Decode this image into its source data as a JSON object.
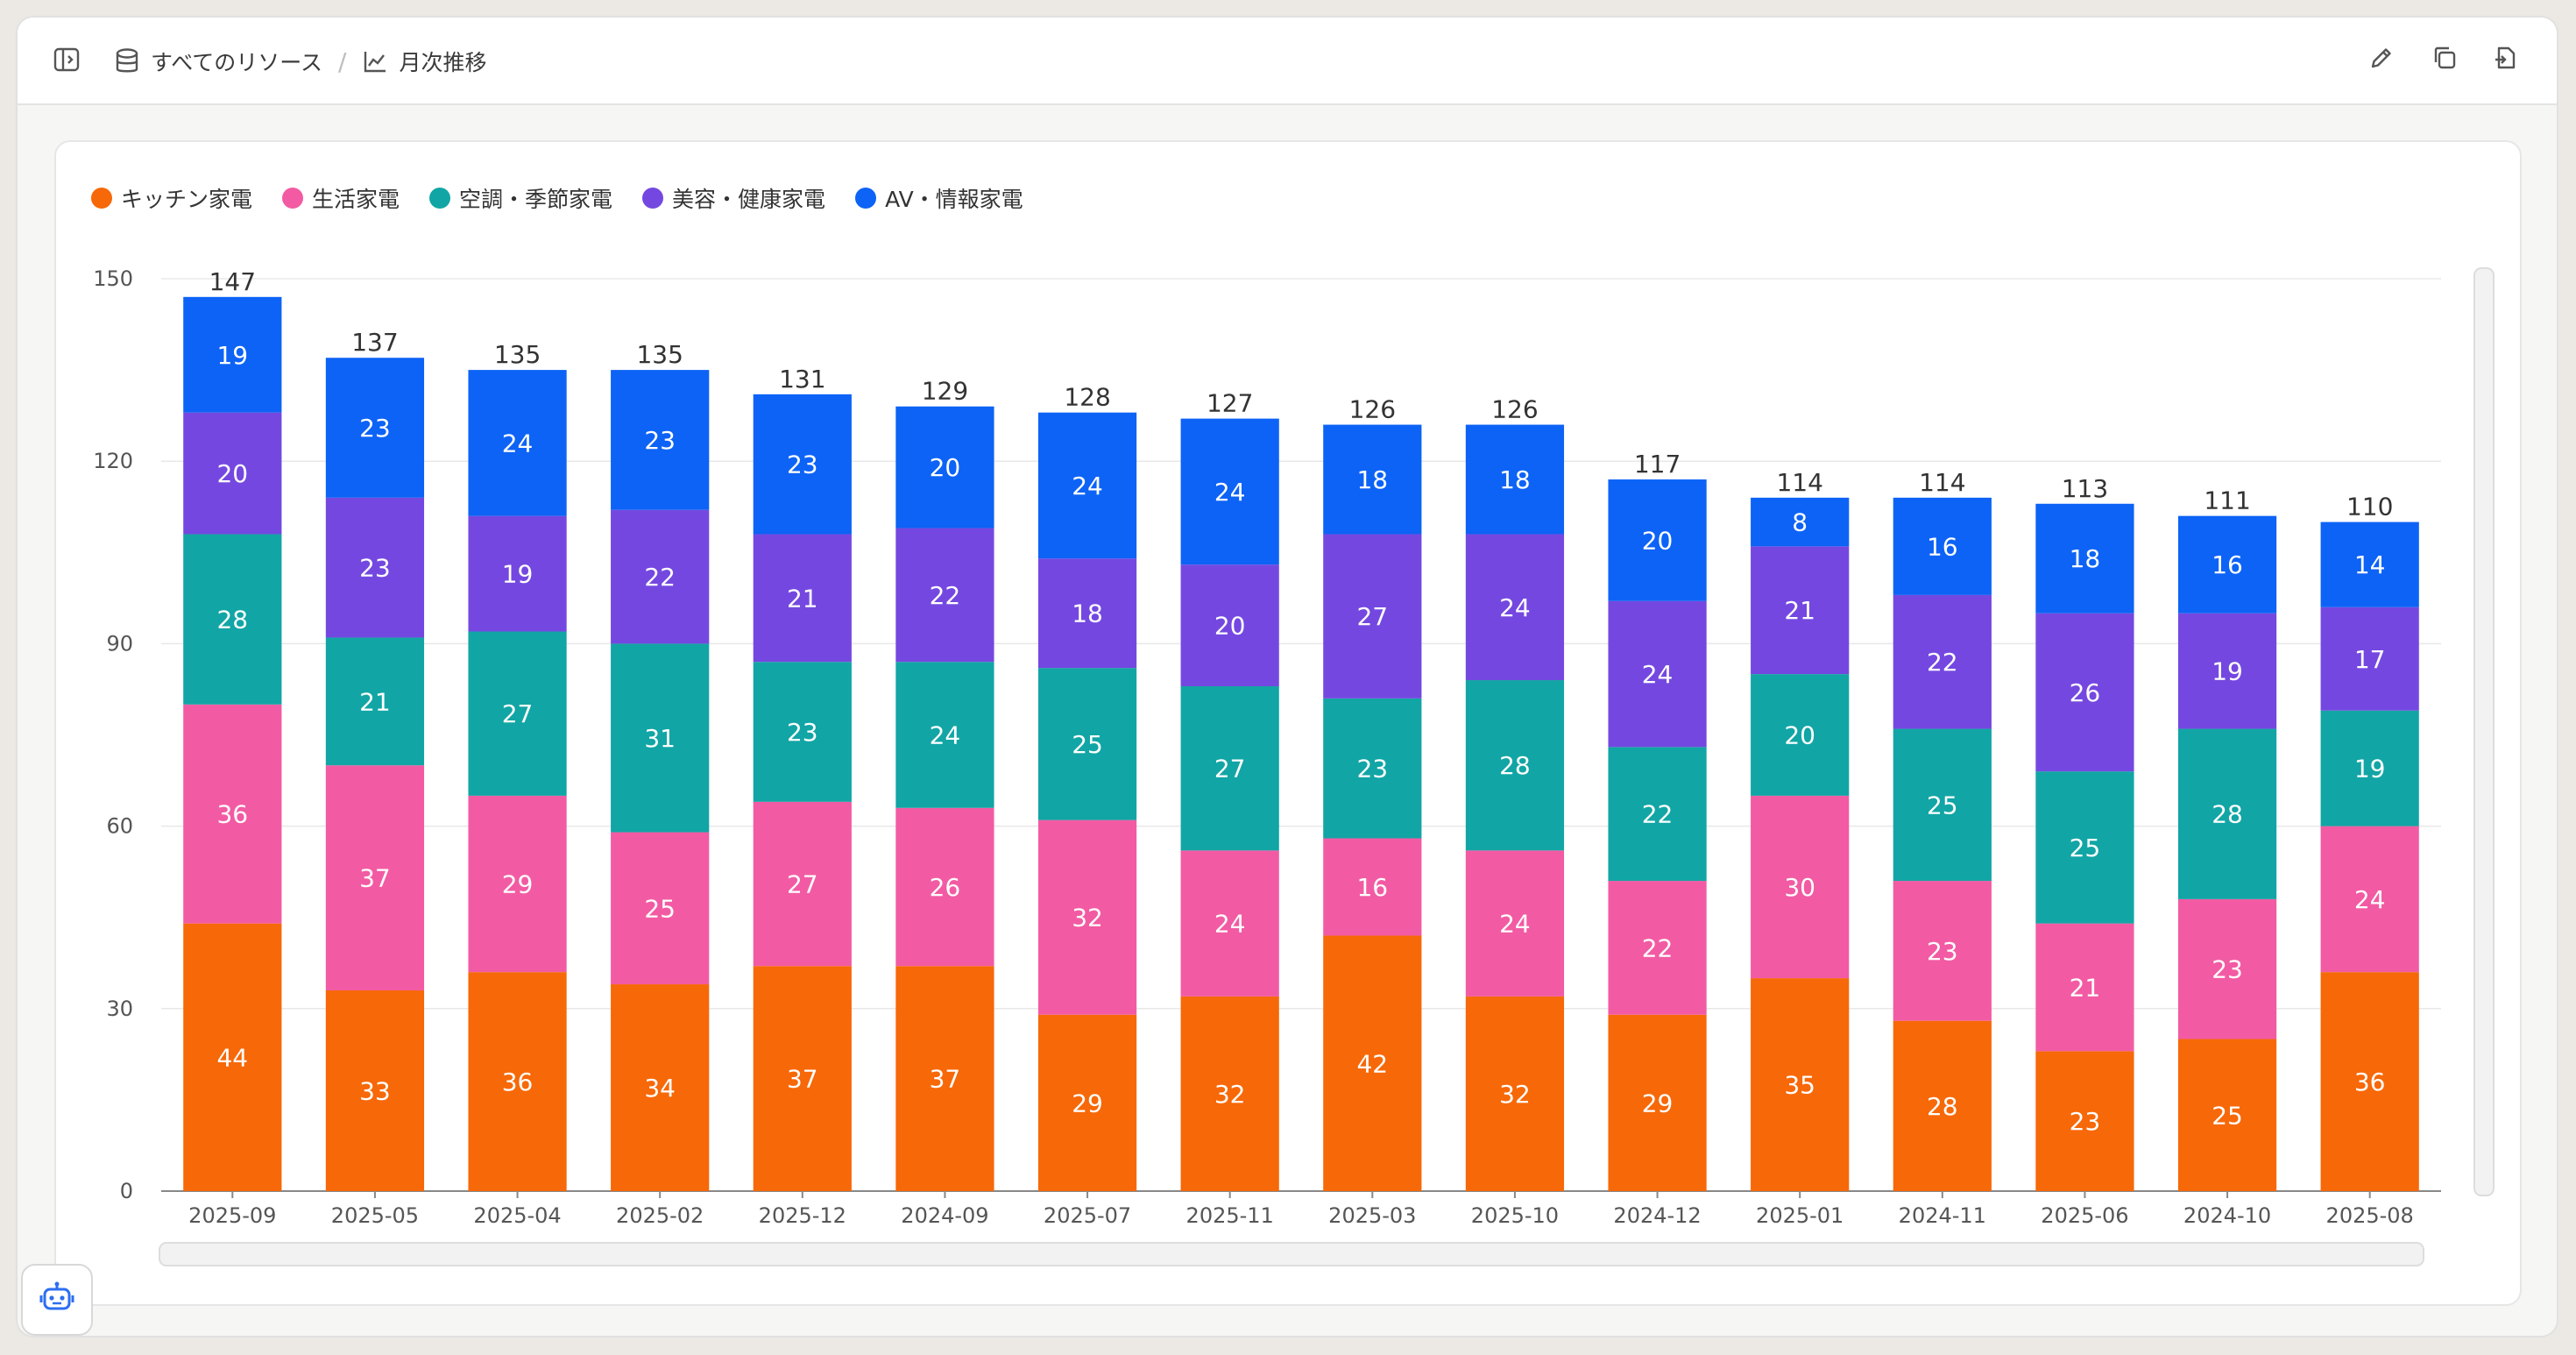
{
  "breadcrumb": {
    "root_label": "すべてのリソース",
    "separator": "/",
    "current_label": "月次推移"
  },
  "icons": {
    "sidebar_toggle": "sidebar-toggle-icon",
    "database": "database-icon",
    "chart": "line-chart-icon",
    "edit": "pencil-icon",
    "copy": "copy-icon",
    "export": "export-icon",
    "assistant": "robot-icon"
  },
  "colors": {
    "kitchen": "#f76808",
    "life": "#f25ba3",
    "aircon": "#12a5a5",
    "beauty": "#7448e0",
    "av": "#0d63f6"
  },
  "chart_data": {
    "type": "bar",
    "stacked": true,
    "categories": [
      "2025-09",
      "2025-05",
      "2025-04",
      "2025-02",
      "2025-12",
      "2024-09",
      "2025-07",
      "2025-11",
      "2025-03",
      "2025-10",
      "2024-12",
      "2025-01",
      "2024-11",
      "2025-06",
      "2024-10",
      "2025-08"
    ],
    "series": [
      {
        "name": "キッチン家電",
        "color": "#f76808",
        "values": [
          44,
          33,
          36,
          34,
          37,
          37,
          29,
          32,
          42,
          32,
          29,
          35,
          28,
          23,
          25,
          36
        ]
      },
      {
        "name": "生活家電",
        "color": "#f25ba3",
        "values": [
          36,
          37,
          29,
          25,
          27,
          26,
          32,
          24,
          16,
          24,
          22,
          30,
          23,
          21,
          23,
          24
        ]
      },
      {
        "name": "空調・季節家電",
        "color": "#12a5a5",
        "values": [
          28,
          21,
          27,
          31,
          23,
          24,
          25,
          27,
          23,
          28,
          22,
          20,
          25,
          25,
          28,
          19
        ]
      },
      {
        "name": "美容・健康家電",
        "color": "#7448e0",
        "values": [
          20,
          23,
          19,
          22,
          21,
          22,
          18,
          20,
          27,
          24,
          24,
          21,
          22,
          26,
          19,
          17
        ]
      },
      {
        "name": "AV・情報家電",
        "color": "#0d63f6",
        "values": [
          19,
          23,
          24,
          23,
          23,
          20,
          24,
          24,
          18,
          18,
          20,
          8,
          16,
          18,
          16,
          14
        ]
      }
    ],
    "totals": [
      147,
      137,
      135,
      135,
      131,
      129,
      128,
      127,
      126,
      126,
      117,
      114,
      114,
      113,
      111,
      110
    ],
    "ylim": [
      0,
      150
    ],
    "yticks": [
      0,
      30,
      60,
      90,
      120,
      150
    ],
    "legend_position": "top-left",
    "grid": true
  }
}
